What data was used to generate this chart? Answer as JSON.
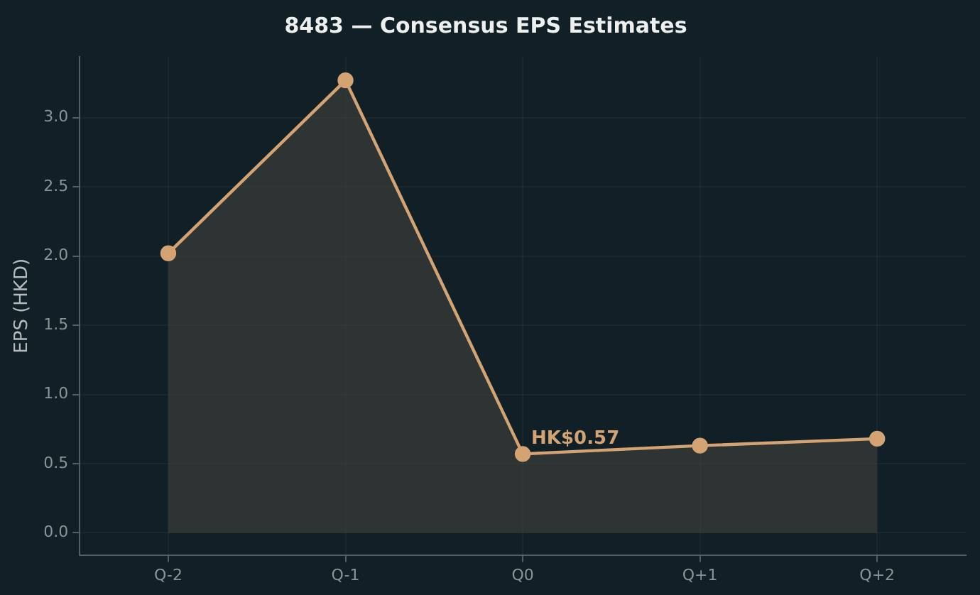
{
  "chart_data": {
    "type": "area",
    "title": "8483 — Consensus EPS Estimates",
    "ylabel": "EPS (HKD)",
    "categories": [
      "Q-2",
      "Q-1",
      "Q0",
      "Q+1",
      "Q+2"
    ],
    "series": [
      {
        "color": "#d4a373",
        "values": [
          2.02,
          3.27,
          0.57,
          0.63,
          0.68
        ]
      }
    ],
    "ylim": [
      -0.16,
      3.44
    ],
    "yticks": [
      {
        "value": 0,
        "label": "0.0"
      },
      {
        "value": 0.5,
        "label": "0.5"
      },
      {
        "value": 1,
        "label": "1.0"
      },
      {
        "value": 1.5,
        "label": "1.5"
      },
      {
        "value": 2,
        "label": "2.0"
      },
      {
        "value": 2.5,
        "label": "2.5"
      },
      {
        "value": 3,
        "label": "3.0"
      }
    ],
    "annotations": [
      {
        "text": "HK$0.57",
        "x": "Q0",
        "y": 0.57
      }
    ],
    "grid": true,
    "legend": false,
    "marker": "circle",
    "line_style": "solid"
  }
}
